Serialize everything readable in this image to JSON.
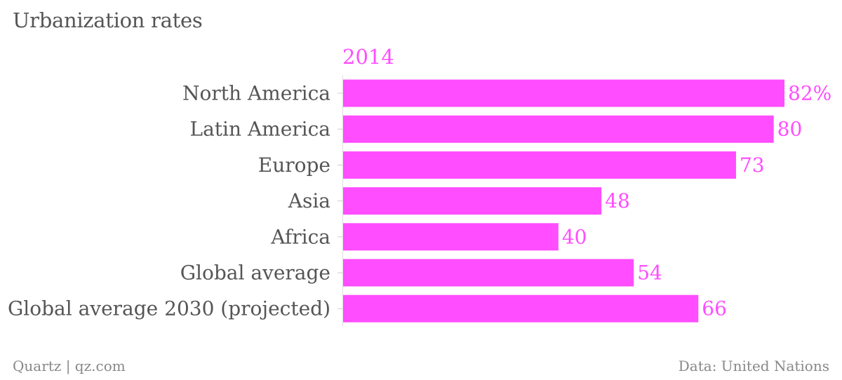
{
  "title": "Urbanization rates",
  "series_label": "2014",
  "footer": {
    "source_left": "Quartz | qz.com",
    "source_right": "Data: United Nations"
  },
  "colors": {
    "bar": "#ff4dff",
    "category_text": "#555555",
    "value_text": "#ff4dff",
    "footer_text": "#888888"
  },
  "chart_data": {
    "type": "bar",
    "orientation": "horizontal",
    "categories": [
      "North America",
      "Latin America",
      "Europe",
      "Asia",
      "Africa",
      "Global average",
      "Global average 2030 (projected)"
    ],
    "series": [
      {
        "name": "2014",
        "values": [
          82,
          80,
          73,
          48,
          40,
          54,
          66
        ]
      }
    ],
    "value_labels": [
      "82%",
      "80",
      "73",
      "48",
      "40",
      "54",
      "66"
    ],
    "xlim": [
      0,
      82
    ],
    "grid": false,
    "title": "Urbanization rates"
  }
}
